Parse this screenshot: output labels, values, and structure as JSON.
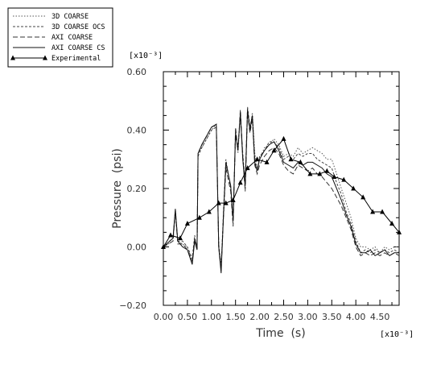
{
  "chart_data": {
    "type": "line",
    "xlabel": "Time  (s)",
    "ylabel": "Pressure  (psi)",
    "x_multiplier": "[x10⁻³]",
    "y_multiplier": "[x10⁻³]",
    "xlim": [
      0.0,
      4.9
    ],
    "ylim": [
      -0.2,
      0.6
    ],
    "x_ticks": [
      0.0,
      0.5,
      1.0,
      1.5,
      2.0,
      2.5,
      3.0,
      3.5,
      4.0,
      4.5
    ],
    "x_tick_labels": [
      "0.00",
      "0.50",
      "1.00",
      "1.50",
      "2.00",
      "2.50",
      "3.00",
      "3.50",
      "4.00",
      "4.50"
    ],
    "y_ticks": [
      -0.2,
      0.0,
      0.2,
      0.4,
      0.6
    ],
    "y_tick_labels": [
      "−0.20",
      "0.00",
      "0.20",
      "0.40",
      "0.60"
    ],
    "grid": false,
    "legend_position": "top-left outside",
    "series": [
      {
        "name": "3D COARSE",
        "style": "dotted",
        "color": "#555555",
        "x": [
          0.0,
          0.2,
          0.25,
          0.3,
          0.4,
          0.5,
          0.6,
          0.65,
          0.7,
          0.72,
          0.8,
          0.9,
          1.0,
          1.1,
          1.15,
          1.2,
          1.25,
          1.3,
          1.4,
          1.45,
          1.5,
          1.55,
          1.6,
          1.65,
          1.7,
          1.75,
          1.8,
          1.85,
          1.9,
          1.95,
          2.0,
          2.1,
          2.2,
          2.3,
          2.4,
          2.5,
          2.6,
          2.7,
          2.8,
          2.9,
          3.0,
          3.1,
          3.2,
          3.3,
          3.4,
          3.5,
          3.6,
          3.7,
          3.8,
          3.9,
          4.0,
          4.1,
          4.2,
          4.3,
          4.4,
          4.5,
          4.6,
          4.7,
          4.8,
          4.9
        ],
        "y": [
          0.0,
          0.02,
          0.13,
          0.02,
          0.01,
          0.0,
          -0.05,
          0.03,
          0.0,
          0.32,
          0.34,
          0.37,
          0.4,
          0.42,
          0.0,
          -0.06,
          0.1,
          0.28,
          0.21,
          0.08,
          0.4,
          0.32,
          0.46,
          0.3,
          0.2,
          0.47,
          0.4,
          0.46,
          0.32,
          0.27,
          0.3,
          0.34,
          0.35,
          0.37,
          0.35,
          0.31,
          0.32,
          0.31,
          0.34,
          0.32,
          0.33,
          0.34,
          0.33,
          0.32,
          0.3,
          0.3,
          0.25,
          0.2,
          0.15,
          0.1,
          0.03,
          0.0,
          0.0,
          -0.01,
          0.0,
          -0.02,
          0.0,
          -0.01,
          0.0,
          0.0
        ]
      },
      {
        "name": "3D COARSE OCS",
        "style": "short-dash",
        "color": "#444444",
        "x": [
          0.0,
          0.2,
          0.25,
          0.3,
          0.4,
          0.5,
          0.6,
          0.65,
          0.7,
          0.72,
          0.8,
          0.9,
          1.0,
          1.1,
          1.15,
          1.2,
          1.25,
          1.3,
          1.4,
          1.45,
          1.5,
          1.55,
          1.6,
          1.65,
          1.7,
          1.75,
          1.8,
          1.85,
          1.9,
          1.95,
          2.0,
          2.1,
          2.2,
          2.3,
          2.4,
          2.5,
          2.6,
          2.7,
          2.8,
          2.9,
          3.0,
          3.1,
          3.2,
          3.3,
          3.4,
          3.5,
          3.6,
          3.7,
          3.8,
          3.9,
          4.0,
          4.1,
          4.2,
          4.3,
          4.4,
          4.5,
          4.6,
          4.7,
          4.8,
          4.9
        ],
        "y": [
          0.0,
          0.03,
          0.12,
          0.02,
          0.02,
          0.0,
          -0.04,
          0.04,
          -0.01,
          0.31,
          0.34,
          0.37,
          0.4,
          0.41,
          0.01,
          -0.07,
          0.12,
          0.3,
          0.2,
          0.1,
          0.38,
          0.34,
          0.45,
          0.32,
          0.22,
          0.48,
          0.41,
          0.45,
          0.3,
          0.26,
          0.31,
          0.33,
          0.36,
          0.36,
          0.34,
          0.3,
          0.31,
          0.3,
          0.32,
          0.31,
          0.32,
          0.32,
          0.3,
          0.29,
          0.28,
          0.27,
          0.22,
          0.18,
          0.12,
          0.08,
          0.02,
          -0.02,
          -0.01,
          -0.02,
          -0.01,
          -0.02,
          -0.01,
          -0.02,
          -0.01,
          -0.02
        ]
      },
      {
        "name": "AXI COARSE",
        "style": "long-dash",
        "color": "#333333",
        "x": [
          0.0,
          0.2,
          0.25,
          0.3,
          0.4,
          0.5,
          0.6,
          0.65,
          0.7,
          0.72,
          0.8,
          0.9,
          1.0,
          1.1,
          1.15,
          1.2,
          1.25,
          1.3,
          1.4,
          1.45,
          1.5,
          1.55,
          1.6,
          1.65,
          1.7,
          1.75,
          1.8,
          1.85,
          1.9,
          1.95,
          2.0,
          2.1,
          2.2,
          2.3,
          2.4,
          2.5,
          2.6,
          2.7,
          2.8,
          2.9,
          3.0,
          3.1,
          3.2,
          3.3,
          3.4,
          3.5,
          3.6,
          3.7,
          3.8,
          3.9,
          4.0,
          4.1,
          4.2,
          4.3,
          4.4,
          4.5,
          4.6,
          4.7,
          4.8,
          4.9
        ],
        "y": [
          0.0,
          0.02,
          0.12,
          0.01,
          0.01,
          -0.01,
          -0.05,
          0.03,
          0.0,
          0.32,
          0.35,
          0.38,
          0.41,
          0.42,
          0.0,
          -0.08,
          0.1,
          0.27,
          0.19,
          0.07,
          0.41,
          0.33,
          0.47,
          0.31,
          0.19,
          0.46,
          0.39,
          0.44,
          0.28,
          0.25,
          0.28,
          0.31,
          0.33,
          0.34,
          0.32,
          0.28,
          0.26,
          0.25,
          0.28,
          0.27,
          0.26,
          0.27,
          0.25,
          0.24,
          0.22,
          0.2,
          0.17,
          0.14,
          0.1,
          0.06,
          0.0,
          -0.03,
          -0.02,
          -0.03,
          -0.02,
          -0.03,
          -0.02,
          -0.03,
          -0.02,
          -0.03
        ]
      },
      {
        "name": "AXI COARSE CS",
        "style": "solid",
        "color": "#111111",
        "x": [
          0.0,
          0.2,
          0.25,
          0.3,
          0.4,
          0.5,
          0.6,
          0.65,
          0.7,
          0.72,
          0.8,
          0.9,
          1.0,
          1.1,
          1.15,
          1.2,
          1.25,
          1.3,
          1.4,
          1.45,
          1.5,
          1.55,
          1.6,
          1.65,
          1.7,
          1.75,
          1.8,
          1.85,
          1.9,
          1.95,
          2.0,
          2.1,
          2.2,
          2.3,
          2.4,
          2.5,
          2.6,
          2.7,
          2.8,
          2.9,
          3.0,
          3.1,
          3.2,
          3.3,
          3.4,
          3.5,
          3.6,
          3.7,
          3.8,
          3.9,
          4.0,
          4.1,
          4.2,
          4.3,
          4.4,
          4.5,
          4.6,
          4.7,
          4.8,
          4.9
        ],
        "y": [
          0.0,
          0.03,
          0.13,
          0.02,
          0.0,
          -0.01,
          -0.06,
          0.02,
          -0.01,
          0.32,
          0.35,
          0.38,
          0.41,
          0.42,
          0.0,
          -0.09,
          0.11,
          0.29,
          0.21,
          0.09,
          0.39,
          0.33,
          0.46,
          0.3,
          0.21,
          0.47,
          0.4,
          0.45,
          0.29,
          0.26,
          0.3,
          0.33,
          0.35,
          0.36,
          0.33,
          0.29,
          0.28,
          0.27,
          0.29,
          0.28,
          0.29,
          0.29,
          0.28,
          0.27,
          0.25,
          0.24,
          0.2,
          0.16,
          0.11,
          0.07,
          0.01,
          -0.02,
          -0.02,
          -0.01,
          -0.03,
          -0.02,
          -0.01,
          -0.03,
          -0.02,
          -0.02
        ]
      },
      {
        "name": "Experimental",
        "style": "solid-triangle-markers",
        "color": "#000000",
        "x": [
          0.0,
          0.15,
          0.35,
          0.5,
          0.75,
          0.95,
          1.15,
          1.3,
          1.45,
          1.6,
          1.75,
          1.95,
          2.15,
          2.3,
          2.5,
          2.65,
          2.85,
          3.05,
          3.25,
          3.4,
          3.55,
          3.75,
          3.95,
          4.15,
          4.35,
          4.55,
          4.75,
          4.9
        ],
        "y": [
          0.0,
          0.04,
          0.03,
          0.08,
          0.1,
          0.12,
          0.15,
          0.15,
          0.16,
          0.22,
          0.27,
          0.3,
          0.29,
          0.33,
          0.37,
          0.3,
          0.29,
          0.25,
          0.25,
          0.26,
          0.24,
          0.23,
          0.2,
          0.17,
          0.12,
          0.12,
          0.08,
          0.05
        ]
      }
    ]
  }
}
